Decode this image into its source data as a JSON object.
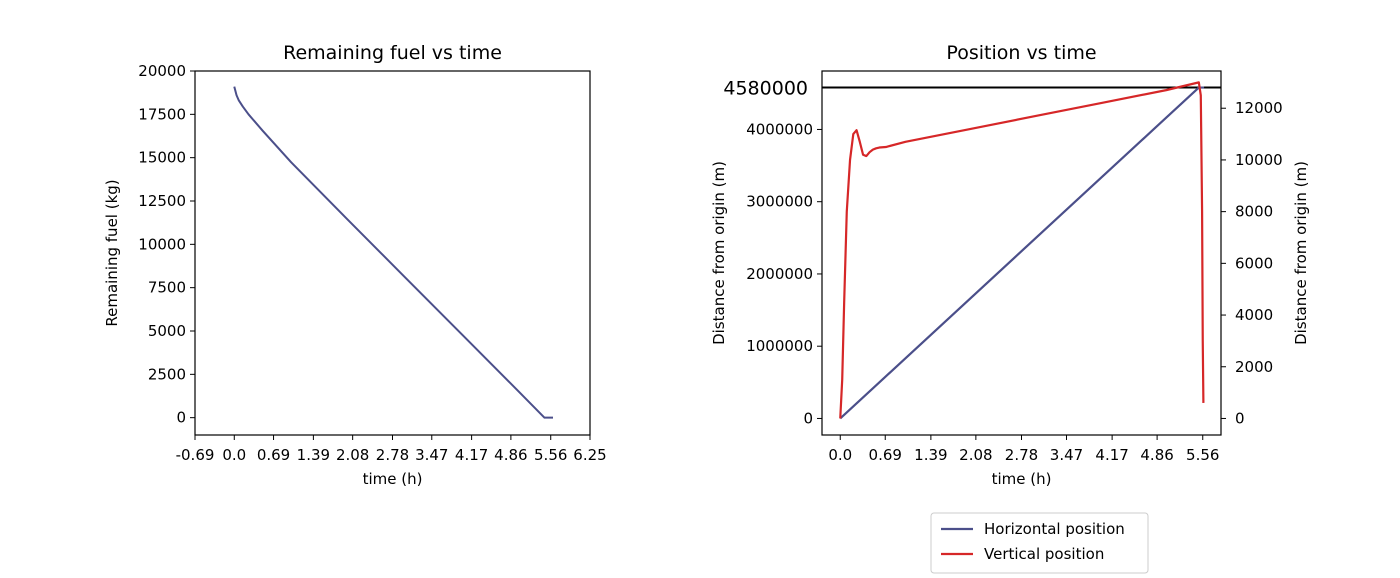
{
  "chart_data": [
    {
      "type": "line",
      "title": "Remaining fuel vs time",
      "xlabel": "time (h)",
      "ylabel": "Remaining fuel (kg)",
      "xlim": [
        -0.69,
        6.25
      ],
      "ylim": [
        -1000,
        20000
      ],
      "x_ticks": [
        -0.69,
        0.0,
        0.69,
        1.39,
        2.08,
        2.78,
        3.47,
        4.17,
        4.86,
        5.56,
        6.25
      ],
      "x_tick_labels": [
        "-0.69",
        "0.0",
        "0.69",
        "1.39",
        "2.08",
        "2.78",
        "3.47",
        "4.17",
        "4.86",
        "5.56",
        "6.25"
      ],
      "y_ticks": [
        0,
        2500,
        5000,
        7500,
        10000,
        12500,
        15000,
        17500,
        20000
      ],
      "y_tick_labels": [
        "0",
        "2500",
        "5000",
        "7500",
        "10000",
        "12500",
        "15000",
        "17500",
        "20000"
      ],
      "series": [
        {
          "color": "#4b4f8a",
          "x": [
            0.0,
            0.04,
            0.08,
            0.15,
            0.25,
            0.5,
            1.0,
            2.0,
            3.0,
            4.0,
            5.0,
            5.45,
            5.55,
            5.6
          ],
          "y": [
            19100,
            18600,
            18300,
            17950,
            17500,
            16550,
            14730,
            11400,
            8100,
            4800,
            1500,
            0,
            0,
            0
          ]
        }
      ]
    },
    {
      "type": "line",
      "title": "Position vs time",
      "xlabel": "time (h)",
      "ylabel": "Distance from origin (m)",
      "ylabel_right": "Distance from origin (m)",
      "xlim": [
        -0.28,
        5.84
      ],
      "ylim": [
        -229000,
        4809000
      ],
      "ylim_right": [
        -640,
        13440
      ],
      "x_ticks": [
        0.0,
        0.69,
        1.39,
        2.08,
        2.78,
        3.47,
        4.17,
        4.86,
        5.56
      ],
      "x_tick_labels": [
        "0.0",
        "0.69",
        "1.39",
        "2.08",
        "2.78",
        "3.47",
        "4.17",
        "4.86",
        "5.56"
      ],
      "y_ticks": [
        0,
        1000000,
        2000000,
        3000000,
        4000000
      ],
      "y_tick_labels": [
        "0",
        "1000000",
        "2000000",
        "3000000",
        "4000000"
      ],
      "y_ticks_right": [
        0,
        2000,
        4000,
        6000,
        8000,
        10000,
        12000
      ],
      "y_tick_labels_right": [
        "0",
        "2000",
        "4000",
        "6000",
        "8000",
        "10000",
        "12000"
      ],
      "reference_line": {
        "value": 4580000,
        "label": "4580000",
        "color": "#000000"
      },
      "series": [
        {
          "name": "Horizontal position",
          "axis": "left",
          "color": "#4b4f8a",
          "x": [
            0.0,
            5.5,
            5.58
          ],
          "y": [
            0,
            4580000,
            4580000
          ]
        },
        {
          "name": "Vertical position",
          "axis": "right",
          "color": "#d62728",
          "x": [
            0.0,
            0.03,
            0.06,
            0.1,
            0.15,
            0.2,
            0.25,
            0.3,
            0.35,
            0.4,
            0.45,
            0.5,
            0.55,
            0.6,
            0.7,
            1.0,
            2.0,
            3.0,
            4.0,
            5.0,
            5.5,
            5.53,
            5.55,
            5.56,
            5.57
          ],
          "y": [
            0,
            1500,
            4500,
            8000,
            10000,
            11000,
            11150,
            10700,
            10200,
            10150,
            10300,
            10400,
            10450,
            10480,
            10500,
            10700,
            11200,
            11700,
            12200,
            12700,
            13000,
            12500,
            8000,
            3000,
            600
          ]
        }
      ],
      "legend": {
        "placement": "below",
        "entries": [
          "Horizontal position",
          "Vertical position"
        ]
      }
    }
  ]
}
